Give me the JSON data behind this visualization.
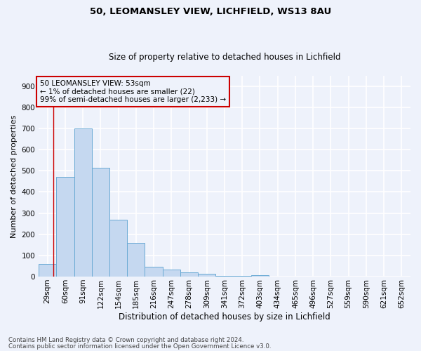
{
  "title1": "50, LEOMANSLEY VIEW, LICHFIELD, WS13 8AU",
  "title2": "Size of property relative to detached houses in Lichfield",
  "xlabel": "Distribution of detached houses by size in Lichfield",
  "ylabel": "Number of detached properties",
  "categories": [
    "29sqm",
    "60sqm",
    "91sqm",
    "122sqm",
    "154sqm",
    "185sqm",
    "216sqm",
    "247sqm",
    "278sqm",
    "309sqm",
    "341sqm",
    "372sqm",
    "403sqm",
    "434sqm",
    "465sqm",
    "496sqm",
    "527sqm",
    "559sqm",
    "590sqm",
    "621sqm",
    "652sqm"
  ],
  "values": [
    60,
    470,
    700,
    515,
    268,
    160,
    48,
    33,
    21,
    15,
    5,
    5,
    8,
    0,
    0,
    0,
    0,
    0,
    0,
    0,
    0
  ],
  "bar_color": "#c5d8f0",
  "bar_edge_color": "#6aaad4",
  "ylim": [
    0,
    950
  ],
  "yticks": [
    0,
    100,
    200,
    300,
    400,
    500,
    600,
    700,
    800,
    900
  ],
  "annotation_line1": "50 LEOMANSLEY VIEW: 53sqm",
  "annotation_line2": "← 1% of detached houses are smaller (22)",
  "annotation_line3": "99% of semi-detached houses are larger (2,233) →",
  "annotation_box_color": "#cc0000",
  "footnote1": "Contains HM Land Registry data © Crown copyright and database right 2024.",
  "footnote2": "Contains public sector information licensed under the Open Government Licence v3.0.",
  "background_color": "#eef2fb",
  "grid_color": "#ffffff",
  "bar_width": 1.0,
  "red_line_x": 0.82,
  "title1_fontsize": 9.5,
  "title2_fontsize": 8.5,
  "xlabel_fontsize": 8.5,
  "ylabel_fontsize": 8,
  "tick_fontsize": 7.5,
  "annot_fontsize": 7.5,
  "footnote_fontsize": 6.2
}
